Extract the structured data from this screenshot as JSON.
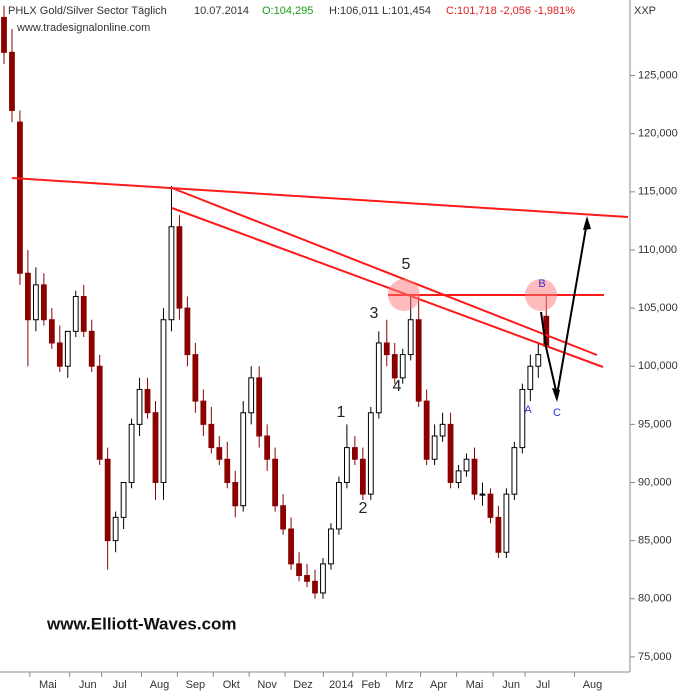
{
  "chart_data": {
    "type": "candlestick",
    "title": "PHLX Gold/Silver Sector Täglich",
    "date": "10.07.2014",
    "quote": {
      "open": "O:104,295",
      "high_low": "H:106,011 L:101,454",
      "close": "C:101,718 -2,056 -1,981%"
    },
    "symbol": "XXP",
    "source": "www.tradesignalonline.com",
    "watermark": "www.Elliott-Waves.com",
    "wave_labels": [
      "1",
      "2",
      "3",
      "4",
      "5",
      "A",
      "B",
      "C"
    ],
    "up_color": "#000000",
    "down_color": "#8b0000",
    "open": [
      130000,
      127000,
      121000,
      108000,
      104000,
      107000,
      104000,
      102000,
      100000,
      103000,
      106000,
      103000,
      100000,
      92000,
      85000,
      87000,
      90000,
      95000,
      98000,
      96000,
      90000,
      104000,
      112000,
      105000,
      101000,
      97000,
      95000,
      93000,
      92000,
      90000,
      88000,
      96000,
      99000,
      94000,
      92000,
      88000,
      86000,
      83000,
      82000,
      81500,
      80500,
      83000,
      86000,
      90000,
      93000,
      92000,
      89000,
      96000,
      102000,
      101000,
      99000,
      101000,
      104000,
      97000,
      92000,
      94000,
      95000,
      90000,
      91000,
      92000,
      89000,
      89000,
      87000,
      84000,
      89000,
      93000,
      98000,
      100000,
      104295
    ],
    "high": [
      131000,
      129000,
      122000,
      110000,
      108500,
      108000,
      105000,
      103500,
      102500,
      106500,
      107000,
      104000,
      101000,
      93000,
      87500,
      90000,
      95500,
      99000,
      99000,
      97000,
      105000,
      115500,
      113000,
      106000,
      102000,
      98000,
      96500,
      94000,
      93500,
      91000,
      97000,
      100000,
      100000,
      95000,
      93000,
      89000,
      87000,
      84000,
      83000,
      82500,
      83500,
      86500,
      90500,
      95000,
      94000,
      93000,
      96500,
      103000,
      104000,
      102000,
      101500,
      106000,
      106000,
      98000,
      95000,
      96000,
      96000,
      91500,
      92500,
      93000,
      90000,
      89500,
      88000,
      89500,
      93500,
      98500,
      101000,
      102000,
      106011
    ],
    "low": [
      126000,
      121000,
      107000,
      100000,
      103000,
      103500,
      101500,
      99500,
      99000,
      102500,
      102500,
      99500,
      91500,
      82500,
      84000,
      86000,
      89500,
      94000,
      95500,
      88500,
      88500,
      103000,
      104000,
      100000,
      96000,
      94000,
      92500,
      91500,
      89500,
      87000,
      87500,
      95000,
      93000,
      91000,
      87500,
      85500,
      82500,
      81500,
      81000,
      80000,
      80000,
      82500,
      85500,
      89500,
      91500,
      88500,
      88500,
      95500,
      100000,
      98500,
      98500,
      100500,
      96500,
      91500,
      91500,
      93500,
      89500,
      89500,
      90500,
      88500,
      88000,
      86500,
      83500,
      83500,
      88500,
      92500,
      97000,
      99000,
      101454
    ],
    "close": [
      127000,
      122000,
      108000,
      104000,
      107000,
      104000,
      102000,
      100000,
      103000,
      106000,
      103000,
      100000,
      92000,
      85000,
      87000,
      90000,
      95000,
      98000,
      96000,
      90000,
      104000,
      112000,
      105000,
      101000,
      97000,
      95000,
      93000,
      92000,
      90000,
      88000,
      96000,
      99000,
      94000,
      92000,
      88000,
      86000,
      83000,
      82000,
      81500,
      80500,
      83000,
      86000,
      90000,
      93000,
      92000,
      89000,
      96000,
      102000,
      101000,
      99000,
      101000,
      104000,
      97000,
      92000,
      94000,
      95000,
      90000,
      91000,
      92000,
      89000,
      89000,
      87000,
      84000,
      89000,
      93000,
      98000,
      100000,
      101000,
      101718
    ],
    "xlim": [
      -0.5,
      78.5
    ],
    "xticks": [
      {
        "value": 5.5,
        "label": "Mai"
      },
      {
        "value": 10.5,
        "label": "Jun"
      },
      {
        "value": 14.5,
        "label": "Jul"
      },
      {
        "value": 19.5,
        "label": "Aug"
      },
      {
        "value": 24,
        "label": "Sep"
      },
      {
        "value": 28.5,
        "label": "Okt"
      },
      {
        "value": 33,
        "label": "Nov"
      },
      {
        "value": 37.5,
        "label": "Dez"
      },
      {
        "value": 42.3,
        "label": "2014"
      },
      {
        "value": 46,
        "label": "Feb"
      },
      {
        "value": 50.2,
        "label": "Mrz"
      },
      {
        "value": 54.5,
        "label": "Apr"
      },
      {
        "value": 59,
        "label": "Mai"
      },
      {
        "value": 63.6,
        "label": "Jun"
      },
      {
        "value": 67.6,
        "label": "Jul"
      },
      {
        "value": 73.8,
        "label": "Aug"
      }
    ],
    "ylim": [
      73700,
      131500
    ],
    "yticks": [
      {
        "value": 75000,
        "label": "75,000"
      },
      {
        "value": 80000,
        "label": "80,000"
      },
      {
        "value": 85000,
        "label": "85,000"
      },
      {
        "value": 90000,
        "label": "90,000"
      },
      {
        "value": 95000,
        "label": "95,000"
      },
      {
        "value": 100000,
        "label": "100,000"
      },
      {
        "value": 105000,
        "label": "105,000"
      },
      {
        "value": 110000,
        "label": "110,000"
      },
      {
        "value": 115000,
        "label": "115,000"
      },
      {
        "value": 120000,
        "label": "120,000"
      },
      {
        "value": 125000,
        "label": "125,000"
      }
    ]
  }
}
